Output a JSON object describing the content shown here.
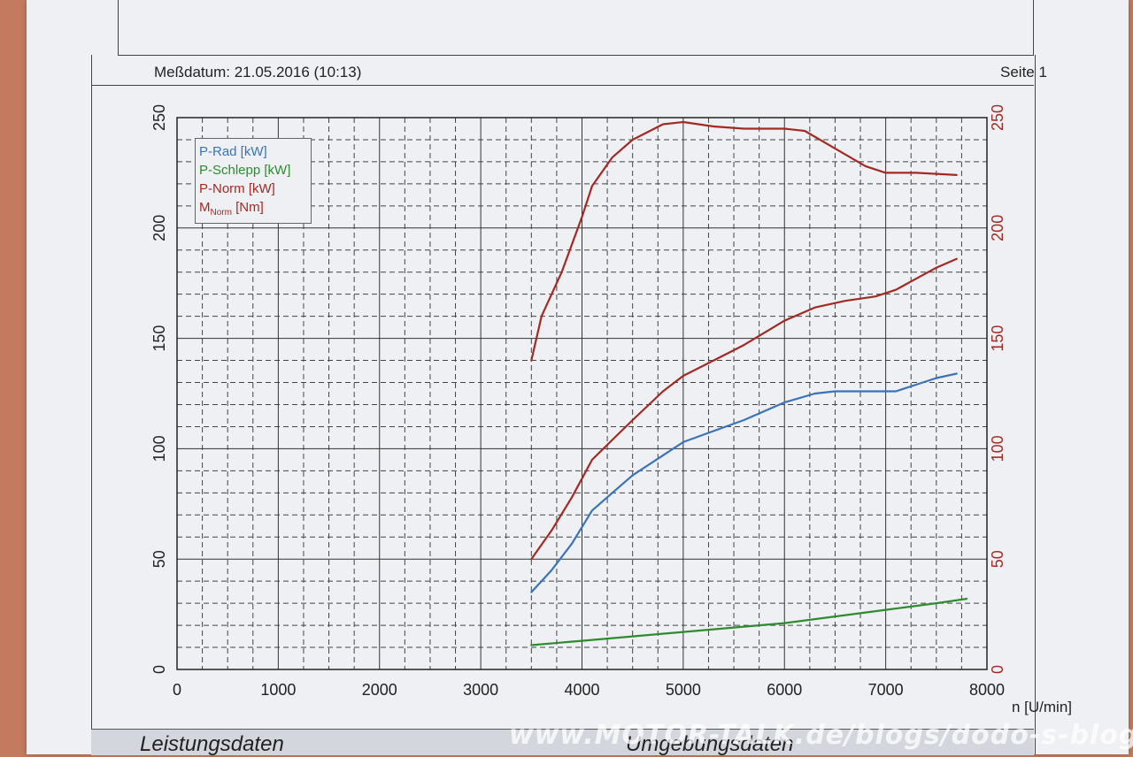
{
  "header": {
    "measurement_label": "Meßdatum: 21.05.2016 (10:13)",
    "page_label": "Seite 1"
  },
  "footer": {
    "left_section": "Leistungsdaten",
    "right_section": "Umgebungsdaten",
    "watermark": "www.MOTOR-TALK.de/blogs/dodo-s-blog/"
  },
  "colors": {
    "rad": "#3a74b8",
    "schlepp": "#2e8b2e",
    "norm": "#a32a22",
    "grid": "#333333"
  },
  "chart_data": {
    "type": "line",
    "xlabel": "n [U/min]",
    "ylabel": "",
    "xlim": [
      0,
      8000
    ],
    "ylim": [
      0,
      250
    ],
    "y2lim": [
      0,
      250
    ],
    "grid": true,
    "legend_position": "top-left",
    "x_ticks": [
      "0",
      "1000",
      "2000",
      "3000",
      "4000",
      "5000",
      "6000",
      "7000",
      "8000"
    ],
    "y_ticks": [
      "0",
      "50",
      "100",
      "150",
      "200",
      "250"
    ],
    "y2_ticks": [
      "0",
      "50",
      "100",
      "150",
      "200",
      "250"
    ],
    "series": [
      {
        "name": "P-Rad [kW]",
        "color_key": "rad",
        "x": [
          3500,
          3700,
          3900,
          4100,
          4300,
          4500,
          4800,
          5000,
          5300,
          5600,
          6000,
          6300,
          6500,
          6800,
          7100,
          7300,
          7500,
          7700
        ],
        "y": [
          35,
          45,
          57,
          72,
          80,
          88,
          97,
          103,
          108,
          113,
          121,
          125,
          126,
          126,
          126,
          129,
          132,
          134
        ]
      },
      {
        "name": "P-Schlepp [kW]",
        "color_key": "schlepp",
        "x": [
          3500,
          4000,
          4500,
          5000,
          5500,
          6000,
          6500,
          7000,
          7500,
          7800
        ],
        "y": [
          11,
          13,
          15,
          17,
          19,
          21,
          24,
          27,
          30,
          32
        ]
      },
      {
        "name": "P-Norm [kW]",
        "color_key": "norm",
        "x": [
          3500,
          3700,
          3900,
          4100,
          4300,
          4500,
          4800,
          5000,
          5300,
          5600,
          6000,
          6300,
          6600,
          6900,
          7100,
          7300,
          7500,
          7700
        ],
        "y": [
          50,
          63,
          78,
          95,
          104,
          113,
          126,
          133,
          140,
          147,
          158,
          164,
          167,
          169,
          172,
          177,
          182,
          186
        ]
      },
      {
        "name": "M_Norm [Nm]",
        "color_key": "norm",
        "x": [
          3500,
          3600,
          3800,
          4000,
          4100,
          4300,
          4500,
          4800,
          5000,
          5300,
          5600,
          6000,
          6200,
          6500,
          6800,
          7000,
          7300,
          7700
        ],
        "y": [
          140,
          160,
          180,
          205,
          219,
          232,
          240,
          247,
          248,
          246,
          245,
          245,
          244,
          236,
          228,
          225,
          225,
          224
        ]
      }
    ],
    "legend": [
      {
        "label": "P-Rad [kW]",
        "color_key": "rad"
      },
      {
        "label": "P-Schlepp [kW]",
        "color_key": "schlepp"
      },
      {
        "label": "P-Norm [kW]",
        "color_key": "norm"
      },
      {
        "label_main": "M",
        "label_sub": "Norm",
        "label_unit": " [Nm]",
        "color_key": "norm"
      }
    ]
  }
}
